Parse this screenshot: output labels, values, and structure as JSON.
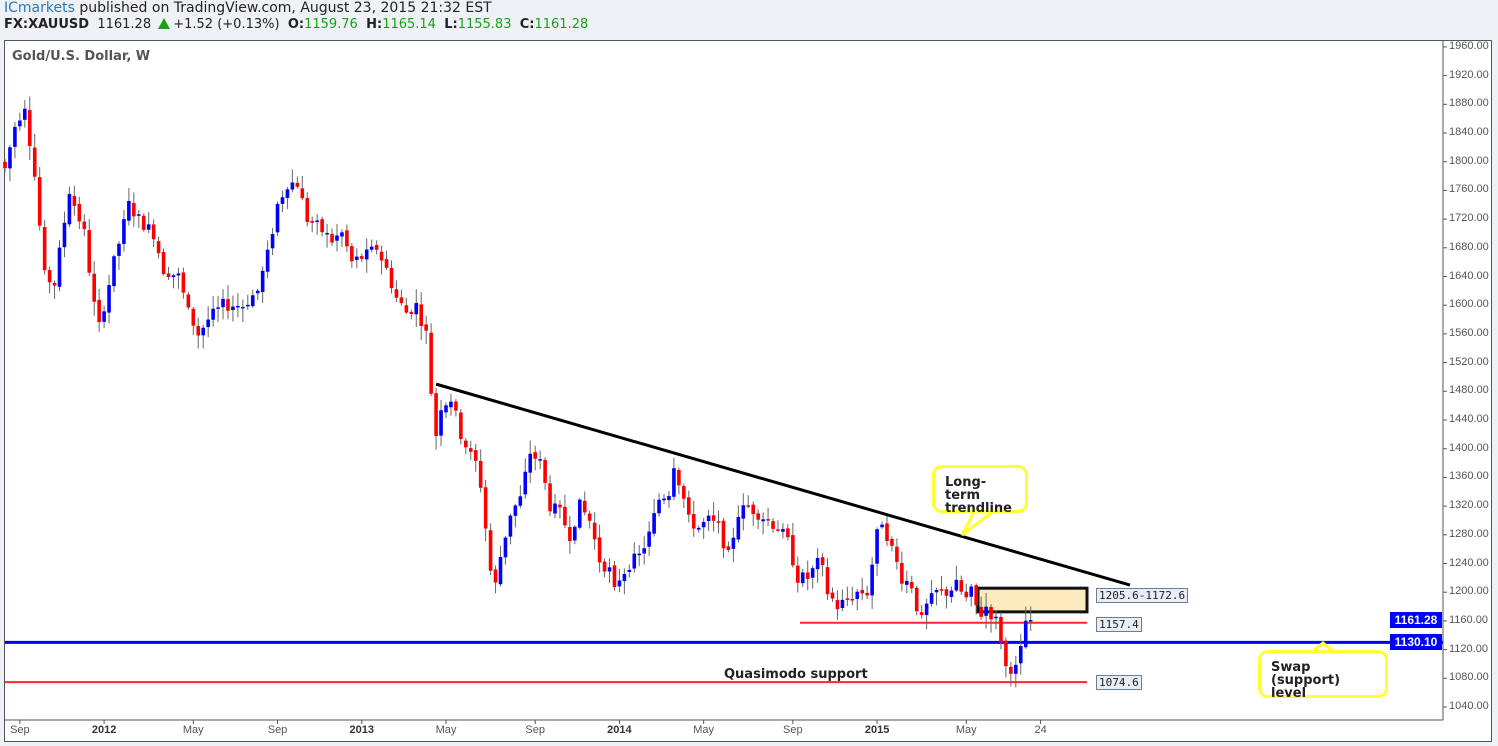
{
  "header": {
    "brand": "ICmarkets",
    "published": " published on TradingView.com, August 23, 2015 21:32 EST",
    "symbol": "FX:XAUUSD",
    "last": "1161.28",
    "change": "+1.52 (+0.13%)",
    "o_label": "O:",
    "o": "1159.76",
    "h_label": "H:",
    "h": "1165.14",
    "l_label": "L:",
    "l": "1155.83",
    "c_label": "C:",
    "c": "1161.28"
  },
  "chart_data": {
    "type": "candlestick",
    "title": "Gold/U.S. Dollar, W",
    "ylim": [
      1020,
      1975
    ],
    "y_ticks": [
      "1960.00",
      "1920.00",
      "1880.00",
      "1840.00",
      "1800.00",
      "1760.00",
      "1720.00",
      "1680.00",
      "1640.00",
      "1600.00",
      "1560.00",
      "1520.00",
      "1480.00",
      "1440.00",
      "1400.00",
      "1360.00",
      "1320.00",
      "1280.00",
      "1240.00",
      "1200.00",
      "1160.00",
      "1120.00",
      "1080.00",
      "1040.00"
    ],
    "x_ticks": [
      {
        "label": "Sep",
        "week": 3,
        "year": false
      },
      {
        "label": "2012",
        "week": 20,
        "year": true
      },
      {
        "label": "May",
        "week": 38,
        "year": false
      },
      {
        "label": "Sep",
        "week": 55,
        "year": false
      },
      {
        "label": "2013",
        "week": 72,
        "year": true
      },
      {
        "label": "May",
        "week": 89,
        "year": false
      },
      {
        "label": "Sep",
        "week": 107,
        "year": false
      },
      {
        "label": "2014",
        "week": 124,
        "year": true
      },
      {
        "label": "May",
        "week": 141,
        "year": false
      },
      {
        "label": "Sep",
        "week": 159,
        "year": false
      },
      {
        "label": "2015",
        "week": 176,
        "year": true
      },
      {
        "label": "May",
        "week": 194,
        "year": false
      },
      {
        "label": "24",
        "week": 209,
        "year": false
      }
    ],
    "weeks": 210,
    "close_anchors": [
      [
        0,
        1790
      ],
      [
        2,
        1850
      ],
      [
        4,
        1880
      ],
      [
        6,
        1780
      ],
      [
        8,
        1640
      ],
      [
        10,
        1630
      ],
      [
        13,
        1760
      ],
      [
        16,
        1700
      ],
      [
        18,
        1600
      ],
      [
        19,
        1570
      ],
      [
        22,
        1660
      ],
      [
        25,
        1740
      ],
      [
        27,
        1720
      ],
      [
        30,
        1700
      ],
      [
        32,
        1650
      ],
      [
        35,
        1640
      ],
      [
        37,
        1590
      ],
      [
        39,
        1560
      ],
      [
        41,
        1580
      ],
      [
        44,
        1600
      ],
      [
        48,
        1600
      ],
      [
        51,
        1620
      ],
      [
        53,
        1670
      ],
      [
        55,
        1740
      ],
      [
        57,
        1770
      ],
      [
        59,
        1770
      ],
      [
        61,
        1720
      ],
      [
        63,
        1710
      ],
      [
        66,
        1690
      ],
      [
        68,
        1700
      ],
      [
        70,
        1660
      ],
      [
        73,
        1670
      ],
      [
        75,
        1680
      ],
      [
        77,
        1650
      ],
      [
        79,
        1610
      ],
      [
        81,
        1590
      ],
      [
        83,
        1600
      ],
      [
        85,
        1560
      ],
      [
        86,
        1480
      ],
      [
        87,
        1420
      ],
      [
        88,
        1460
      ],
      [
        90,
        1470
      ],
      [
        92,
        1420
      ],
      [
        94,
        1390
      ],
      [
        95,
        1380
      ],
      [
        96,
        1350
      ],
      [
        97,
        1290
      ],
      [
        98,
        1230
      ],
      [
        99,
        1210
      ],
      [
        100,
        1250
      ],
      [
        102,
        1310
      ],
      [
        104,
        1330
      ],
      [
        106,
        1395
      ],
      [
        108,
        1380
      ],
      [
        110,
        1320
      ],
      [
        112,
        1310
      ],
      [
        114,
        1280
      ],
      [
        116,
        1320
      ],
      [
        118,
        1300
      ],
      [
        120,
        1245
      ],
      [
        122,
        1230
      ],
      [
        123,
        1200
      ],
      [
        124,
        1220
      ],
      [
        126,
        1240
      ],
      [
        128,
        1250
      ],
      [
        130,
        1280
      ],
      [
        132,
        1330
      ],
      [
        134,
        1340
      ],
      [
        135,
        1380
      ],
      [
        137,
        1330
      ],
      [
        138,
        1300
      ],
      [
        140,
        1290
      ],
      [
        142,
        1300
      ],
      [
        144,
        1290
      ],
      [
        146,
        1250
      ],
      [
        148,
        1310
      ],
      [
        150,
        1320
      ],
      [
        152,
        1310
      ],
      [
        154,
        1300
      ],
      [
        156,
        1290
      ],
      [
        158,
        1270
      ],
      [
        160,
        1220
      ],
      [
        162,
        1220
      ],
      [
        164,
        1240
      ],
      [
        165,
        1230
      ],
      [
        166,
        1200
      ],
      [
        168,
        1180
      ],
      [
        170,
        1190
      ],
      [
        172,
        1200
      ],
      [
        174,
        1200
      ],
      [
        176,
        1280
      ],
      [
        177,
        1300
      ],
      [
        179,
        1260
      ],
      [
        181,
        1220
      ],
      [
        183,
        1210
      ],
      [
        184,
        1180
      ],
      [
        185,
        1160
      ],
      [
        186,
        1180
      ],
      [
        188,
        1200
      ],
      [
        190,
        1200
      ],
      [
        192,
        1210
      ],
      [
        194,
        1190
      ],
      [
        195,
        1200
      ],
      [
        196,
        1180
      ],
      [
        197,
        1170
      ],
      [
        198,
        1180
      ],
      [
        199,
        1170
      ],
      [
        200,
        1160
      ],
      [
        201,
        1135
      ],
      [
        202,
        1095
      ],
      [
        203,
        1095
      ],
      [
        204,
        1093
      ],
      [
        205,
        1118
      ],
      [
        206,
        1160
      ],
      [
        207,
        1161
      ]
    ],
    "series_colors": {
      "up": "#0000ff",
      "down": "#ff0000"
    },
    "horizontal_levels": [
      {
        "price": 1130.1,
        "label": "1130.10",
        "color": "#0000ff"
      },
      {
        "price": 1157.4,
        "label": "1157.4",
        "color": "#ff0000"
      },
      {
        "price": 1074.6,
        "label": "1074.6",
        "color": "#ff0000"
      }
    ],
    "current_price_label": "1161.28",
    "zone": {
      "top": 1205.6,
      "bottom": 1172.6,
      "label": "1205.6-1172.6"
    },
    "trendline": {
      "from": [
        87,
        1490
      ],
      "to": [
        227,
        1210
      ]
    },
    "annotations": {
      "trendline": "Long-term trendline",
      "swap": "Swap (support) level",
      "quasimodo": "Quasimodo support"
    }
  }
}
